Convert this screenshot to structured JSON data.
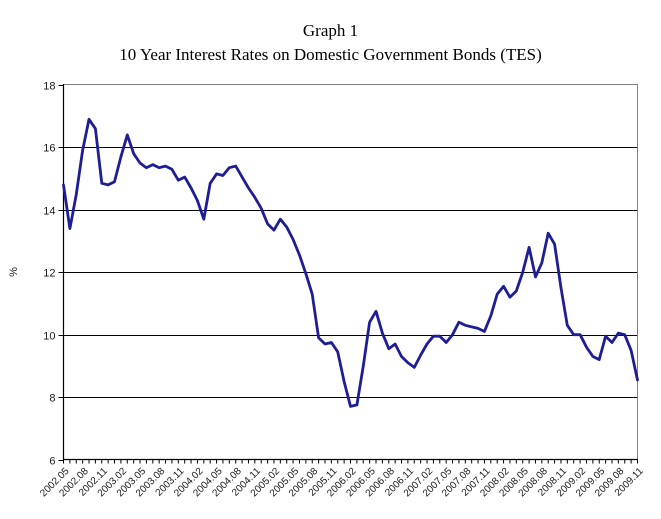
{
  "page": {
    "title": "Graph 1",
    "subtitle": "10 Year Interest Rates on Domestic Government Bonds (TES)"
  },
  "chart_data": {
    "type": "line",
    "title": "Graph 1",
    "subtitle": "10 Year Interest Rates on Domestic Government Bonds (TES)",
    "xlabel": "",
    "ylabel": "%",
    "ylim": [
      6,
      18
    ],
    "y_ticks": [
      18,
      16,
      14,
      12,
      10,
      8,
      6
    ],
    "grid": true,
    "legend_position": "none",
    "x_label_every": 3,
    "x_label_rotation": 45,
    "line_color": "#1d1d96",
    "axis_color": "#000000",
    "categories": [
      "2002.05",
      "2002.06",
      "2002.07",
      "2002.08",
      "2002.09",
      "2002.10",
      "2002.11",
      "2002.12",
      "2003.01",
      "2003.02",
      "2003.03",
      "2003.04",
      "2003.05",
      "2003.06",
      "2003.07",
      "2003.08",
      "2003.09",
      "2003.10",
      "2003.11",
      "2003.12",
      "2004.01",
      "2004.02",
      "2004.03",
      "2004.04",
      "2004.05",
      "2004.06",
      "2004.07",
      "2004.08",
      "2004.09",
      "2004.10",
      "2004.11",
      "2004.12",
      "2005.01",
      "2005.02",
      "2005.03",
      "2005.04",
      "2005.05",
      "2005.06",
      "2005.07",
      "2005.08",
      "2005.09",
      "2005.10",
      "2005.11",
      "2005.12",
      "2006.01",
      "2006.02",
      "2006.03",
      "2006.04",
      "2006.05",
      "2006.06",
      "2006.07",
      "2006.08",
      "2006.09",
      "2006.10",
      "2006.11",
      "2006.12",
      "2007.01",
      "2007.02",
      "2007.03",
      "2007.04",
      "2007.05",
      "2007.06",
      "2007.07",
      "2007.08",
      "2007.09",
      "2007.10",
      "2007.11",
      "2007.12",
      "2008.01",
      "2008.02",
      "2008.03",
      "2008.04",
      "2008.05",
      "2008.06",
      "2008.07",
      "2008.08",
      "2008.09",
      "2008.10",
      "2008.11",
      "2008.12",
      "2009.01",
      "2009.02",
      "2009.03",
      "2009.04",
      "2009.05",
      "2009.06",
      "2009.07",
      "2009.08",
      "2009.09",
      "2009.10",
      "2009.11"
    ],
    "values": [
      14.8,
      13.4,
      14.5,
      15.9,
      16.9,
      16.6,
      14.85,
      14.8,
      14.9,
      15.7,
      16.4,
      15.8,
      15.5,
      15.35,
      15.45,
      15.35,
      15.4,
      15.3,
      14.95,
      15.05,
      14.7,
      14.3,
      13.7,
      14.85,
      15.15,
      15.1,
      15.35,
      15.4,
      15.05,
      14.7,
      14.4,
      14.05,
      13.55,
      13.35,
      13.7,
      13.45,
      13.05,
      12.55,
      11.95,
      11.3,
      9.9,
      9.7,
      9.75,
      9.45,
      8.5,
      7.7,
      7.75,
      9.0,
      10.4,
      10.75,
      10.05,
      9.55,
      9.7,
      9.3,
      9.1,
      8.95,
      9.35,
      9.7,
      9.95,
      9.95,
      9.75,
      10.0,
      10.4,
      10.3,
      10.25,
      10.2,
      10.1,
      10.6,
      11.3,
      11.55,
      11.2,
      11.4,
      12.0,
      12.8,
      11.85,
      12.3,
      13.25,
      12.9,
      11.5,
      10.3,
      10.0,
      10.0,
      9.6,
      9.3,
      9.2,
      9.95,
      9.75,
      10.05,
      10.0,
      9.5,
      8.55
    ]
  }
}
